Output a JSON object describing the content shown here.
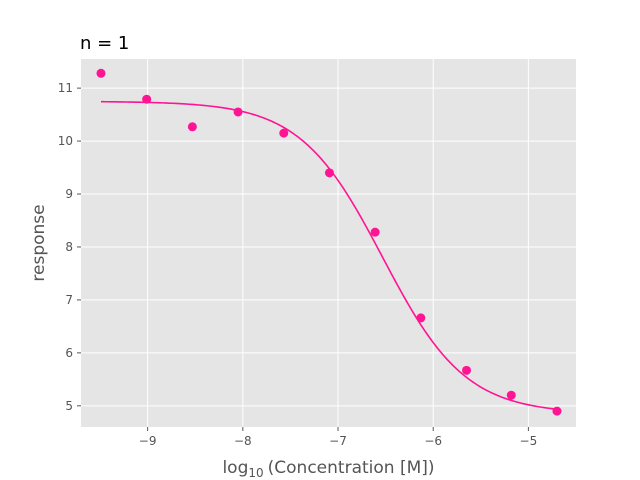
{
  "chart_data": {
    "type": "scatter",
    "title": "n = 1",
    "xlabel": {
      "base": "log",
      "sub": "10",
      "rest": "(Concentration [M])"
    },
    "ylabel": "response",
    "xlim": [
      -9.7,
      -4.5
    ],
    "ylim": [
      4.6,
      11.55
    ],
    "xticks": [
      -9,
      -8,
      -7,
      -6,
      -5
    ],
    "xtick_labels": [
      "−9",
      "−8",
      "−7",
      "−6",
      "−5"
    ],
    "yticks": [
      5,
      6,
      7,
      8,
      9,
      10,
      11
    ],
    "ytick_labels": [
      "5",
      "6",
      "7",
      "8",
      "9",
      "10",
      "11"
    ],
    "grid": true,
    "background": "#e5e5e5",
    "series": [
      {
        "kind": "points",
        "color": "#ff1493",
        "x": [
          -9.49,
          -9.01,
          -8.53,
          -8.05,
          -7.57,
          -7.09,
          -6.61,
          -6.13,
          -5.65,
          -5.18,
          -4.7
        ],
        "y": [
          11.28,
          10.79,
          10.27,
          10.55,
          10.15,
          9.4,
          8.28,
          6.66,
          5.67,
          5.2,
          4.9
        ]
      },
      {
        "kind": "fit-curve",
        "color": "#ff1493",
        "model": "four-parameter logistic",
        "top": 10.75,
        "bottom": 4.85,
        "log_ec50": -6.53,
        "hill": 1.0,
        "x_range": [
          -9.49,
          -4.7
        ]
      }
    ]
  }
}
